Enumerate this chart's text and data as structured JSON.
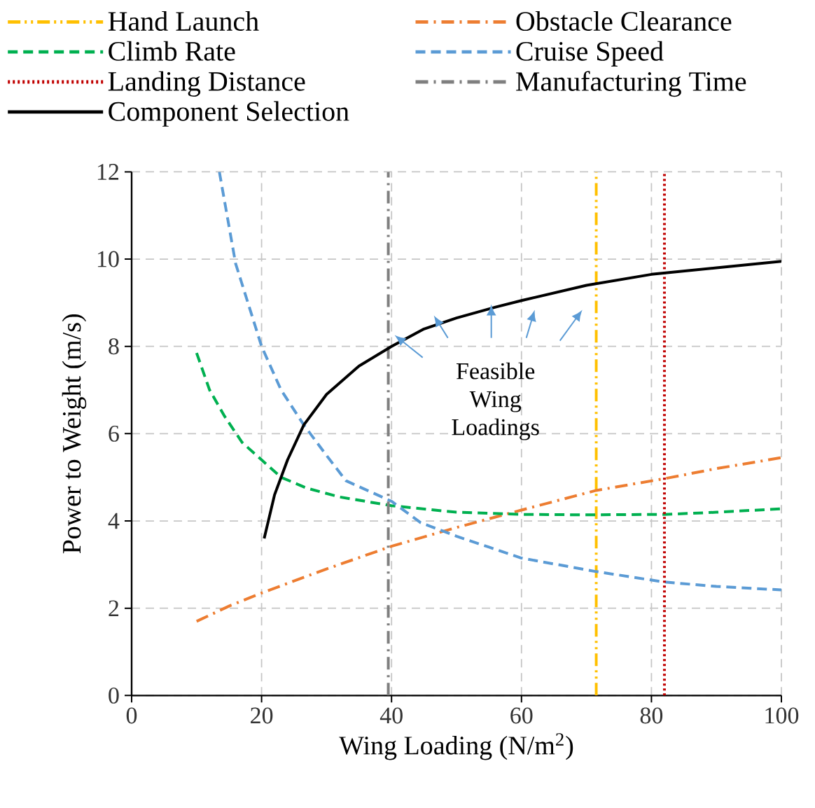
{
  "chart_data": {
    "type": "line",
    "xlabel": "Wing Loading (N/m$^{2}$)",
    "ylabel": "Power to Weight (m/s)",
    "xlim": [
      0,
      100
    ],
    "xticks": [
      0,
      20,
      40,
      60,
      80,
      100
    ],
    "ylim": [
      0,
      12
    ],
    "yticks": [
      0,
      2,
      4,
      6,
      8,
      10,
      12
    ],
    "grid": true,
    "legend": "top",
    "marker": "none",
    "annotations": [
      {
        "text": "Feasible Wing Loadings",
        "x": 56,
        "y": 8.9
      }
    ],
    "series": [
      {
        "name": "Hand Launch",
        "color": "#ffc000",
        "line_style": "dashdotdot",
        "x": [
          71.5,
          71.5
        ],
        "values": [
          0,
          12
        ]
      },
      {
        "name": "Obstacle Clearance",
        "color": "#ed7d31",
        "line_style": "dashdot",
        "x": [
          10,
          15,
          20,
          30,
          40,
          50,
          60,
          71.5,
          82,
          90,
          100
        ],
        "values": [
          1.7,
          2.05,
          2.35,
          2.9,
          3.42,
          3.85,
          4.25,
          4.7,
          4.97,
          5.2,
          5.45
        ]
      },
      {
        "name": "Climb Rate",
        "color": "#00b050",
        "line_style": "dashed",
        "x": [
          10,
          12,
          14.3,
          17,
          20,
          23,
          27,
          32,
          40,
          50,
          60,
          70,
          82,
          90,
          100
        ],
        "values": [
          7.85,
          7.0,
          6.4,
          5.8,
          5.4,
          5.0,
          4.75,
          4.55,
          4.35,
          4.2,
          4.15,
          4.14,
          4.15,
          4.2,
          4.28
        ]
      },
      {
        "name": "Cruise Speed",
        "color": "#5b9bd5",
        "line_style": "dashed",
        "x": [
          13.5,
          16,
          20,
          23,
          26.5,
          30,
          33,
          40,
          44.5,
          50,
          55,
          60,
          71.5,
          82,
          90,
          100
        ],
        "values": [
          12,
          9.9,
          8.0,
          7.0,
          6.2,
          5.5,
          4.92,
          4.45,
          3.96,
          3.65,
          3.4,
          3.15,
          2.84,
          2.6,
          2.5,
          2.42
        ]
      },
      {
        "name": "Landing Distance",
        "color": "#c00000",
        "line_style": "dotted",
        "x": [
          82,
          82
        ],
        "values": [
          0,
          12
        ]
      },
      {
        "name": "Manufacturing Time",
        "color": "#7f7f7f",
        "line_style": "dashdot",
        "x": [
          39.5,
          39.5
        ],
        "values": [
          0,
          12
        ]
      },
      {
        "name": "Component Selection",
        "color": "#000000",
        "line_style": "solid",
        "x": [
          20.4,
          22,
          24,
          26.5,
          30,
          35,
          40,
          45,
          50,
          56,
          60,
          70,
          80,
          90,
          100
        ],
        "values": [
          3.6,
          4.6,
          5.4,
          6.2,
          6.9,
          7.55,
          8.0,
          8.4,
          8.65,
          8.9,
          9.05,
          9.4,
          9.65,
          9.8,
          9.95
        ]
      }
    ]
  }
}
